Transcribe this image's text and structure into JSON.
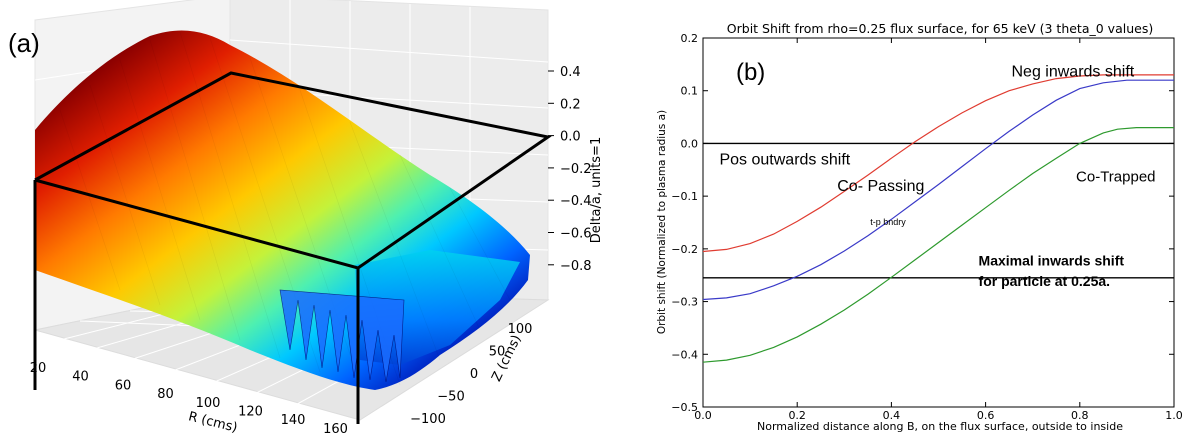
{
  "chart_data": [
    {
      "panel_label": "(a)",
      "type": "surface3d",
      "xlabel": "R (cms)",
      "ylabel": "Z (cms)",
      "zlabel": "Delta/a, units=1",
      "x_ticks": [
        "20",
        "40",
        "60",
        "80",
        "100",
        "120",
        "140",
        "160"
      ],
      "y_ticks": [
        "100",
        "50",
        "0",
        "−50",
        "−100"
      ],
      "z_ticks": [
        "0.4",
        "0.2",
        "0.0",
        "−0.2",
        "−0.4",
        "−0.6",
        "−0.8"
      ],
      "xlim": [
        20,
        160
      ],
      "ylim": [
        -100,
        100
      ],
      "zlim": [
        -0.8,
        0.4
      ],
      "colormap": "jet",
      "grid": true
    },
    {
      "panel_label": "(b)",
      "type": "line",
      "title": "Orbit Shift from rho=0.25 flux surface, for 65 keV (3 theta_0 values)",
      "xlabel": "Normalized distance along B, on the flux surface, outside to inside",
      "ylabel": "Orbit shift (Normalized to plasma radius a)",
      "xlim": [
        0.0,
        1.0
      ],
      "ylim": [
        -0.5,
        0.2
      ],
      "x_ticks": [
        "0.0",
        "0.2",
        "0.4",
        "0.6",
        "0.8",
        "1.0"
      ],
      "y_ticks": [
        "0.2",
        "0.1",
        "0.0",
        "−0.1",
        "−0.2",
        "−0.3",
        "−0.4",
        "−0.5"
      ],
      "series": [
        {
          "color": "#e03c31",
          "x": [
            0.0,
            0.05,
            0.1,
            0.15,
            0.2,
            0.25,
            0.3,
            0.35,
            0.4,
            0.45,
            0.5,
            0.55,
            0.6,
            0.65,
            0.7,
            0.75,
            0.8,
            0.85,
            0.9,
            0.95,
            1.0
          ],
          "y": [
            -0.205,
            -0.201,
            -0.19,
            -0.172,
            -0.148,
            -0.121,
            -0.091,
            -0.06,
            -0.028,
            0.003,
            0.032,
            0.058,
            0.081,
            0.1,
            0.113,
            0.123,
            0.128,
            0.13,
            0.13,
            0.13,
            0.13
          ]
        },
        {
          "color": "#3a3ac8",
          "x": [
            0.0,
            0.05,
            0.1,
            0.15,
            0.2,
            0.25,
            0.3,
            0.35,
            0.4,
            0.45,
            0.5,
            0.55,
            0.6,
            0.65,
            0.7,
            0.75,
            0.8,
            0.85,
            0.9,
            0.95,
            1.0
          ],
          "y": [
            -0.296,
            -0.293,
            -0.285,
            -0.27,
            -0.252,
            -0.23,
            -0.204,
            -0.175,
            -0.144,
            -0.111,
            -0.078,
            -0.044,
            -0.01,
            0.023,
            0.054,
            0.082,
            0.104,
            0.115,
            0.12,
            0.12,
            0.12
          ]
        },
        {
          "color": "#2e9a2e",
          "x": [
            0.0,
            0.05,
            0.1,
            0.15,
            0.2,
            0.25,
            0.3,
            0.35,
            0.4,
            0.45,
            0.5,
            0.55,
            0.6,
            0.65,
            0.7,
            0.75,
            0.8,
            0.85,
            0.88,
            0.92,
            0.96,
            1.0
          ],
          "y": [
            -0.415,
            -0.411,
            -0.402,
            -0.387,
            -0.367,
            -0.343,
            -0.316,
            -0.286,
            -0.254,
            -0.221,
            -0.188,
            -0.155,
            -0.122,
            -0.089,
            -0.057,
            -0.028,
            0.0,
            0.02,
            0.027,
            0.03,
            0.03,
            0.03
          ]
        }
      ],
      "hlines": [
        0.0,
        -0.255
      ],
      "annotations": [
        {
          "text": "(b)",
          "x": 0.07,
          "y": 0.12
        },
        {
          "text": "Neg inwards shift",
          "x": 0.655,
          "y": 0.127
        },
        {
          "text": "Pos outwards shift",
          "x": 0.035,
          "y": -0.04
        },
        {
          "text": "Co- Passing",
          "x": 0.285,
          "y": -0.09
        },
        {
          "text": "Co-Trapped",
          "x": 0.792,
          "y": -0.072
        },
        {
          "text": "t-p bndry",
          "x": 0.355,
          "y": -0.155
        },
        {
          "text": "Maximal inwards shift",
          "x": 0.585,
          "y": -0.232
        },
        {
          "text": "for particle at 0.25a.",
          "x": 0.585,
          "y": -0.27
        }
      ],
      "grid": false
    }
  ]
}
